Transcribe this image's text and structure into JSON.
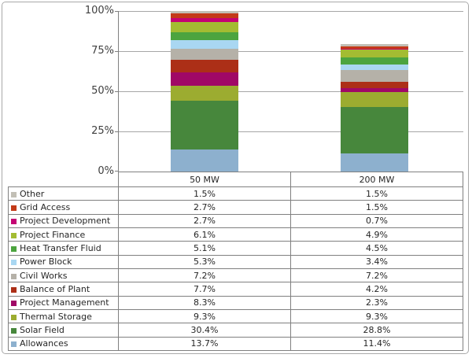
{
  "chart": {
    "y_axis_ticks": [
      "100%",
      "75%",
      "50%",
      "25%",
      "0%"
    ]
  },
  "chart_data": {
    "type": "bar",
    "stacked": true,
    "title": "",
    "xlabel": "",
    "ylabel": "",
    "ylim": [
      0,
      100
    ],
    "grid": true,
    "legend_position": "table-below",
    "value_suffix": "%",
    "categories": [
      "50 MW",
      "200 MW"
    ],
    "series": [
      {
        "name": "Other",
        "color": "#c2bfb5",
        "values": [
          1.5,
          1.5
        ]
      },
      {
        "name": "Grid Access",
        "color": "#c33a18",
        "values": [
          2.7,
          1.5
        ]
      },
      {
        "name": "Project Development",
        "color": "#c40473",
        "values": [
          2.7,
          0.7
        ]
      },
      {
        "name": "Project Finance",
        "color": "#a3bc32",
        "values": [
          6.1,
          4.9
        ]
      },
      {
        "name": "Heat Transfer Fluid",
        "color": "#4ca43f",
        "values": [
          5.1,
          4.5
        ]
      },
      {
        "name": "Power Block",
        "color": "#a9d7f2",
        "values": [
          5.3,
          3.4
        ]
      },
      {
        "name": "Civil Works",
        "color": "#b5b1a8",
        "values": [
          7.2,
          7.2
        ]
      },
      {
        "name": "Balance of Plant",
        "color": "#ac2f17",
        "values": [
          7.7,
          4.2
        ]
      },
      {
        "name": "Project Management",
        "color": "#a00866",
        "values": [
          8.3,
          2.3
        ]
      },
      {
        "name": "Thermal Storage",
        "color": "#9cac30",
        "values": [
          9.3,
          9.3
        ]
      },
      {
        "name": "Solar Field",
        "color": "#47873c",
        "values": [
          30.4,
          28.8
        ]
      },
      {
        "name": "Allowances",
        "color": "#8db0ce",
        "values": [
          13.7,
          11.4
        ]
      }
    ],
    "table_values_text": {
      "50 MW": [
        "1.5%",
        "2.7%",
        "2.7%",
        "6.1%",
        "5.1%",
        "5.3%",
        "7.2%",
        "7.7%",
        "8.3%",
        "9.3%",
        "30.4%",
        "13.7%"
      ],
      "200 MW": [
        "1.5%",
        "1.5%",
        "0.7%",
        "4.9%",
        "4.5%",
        "3.4%",
        "7.2%",
        "4.2%",
        "2.3%",
        "9.3%",
        "28.8%",
        "11.4%"
      ]
    }
  }
}
